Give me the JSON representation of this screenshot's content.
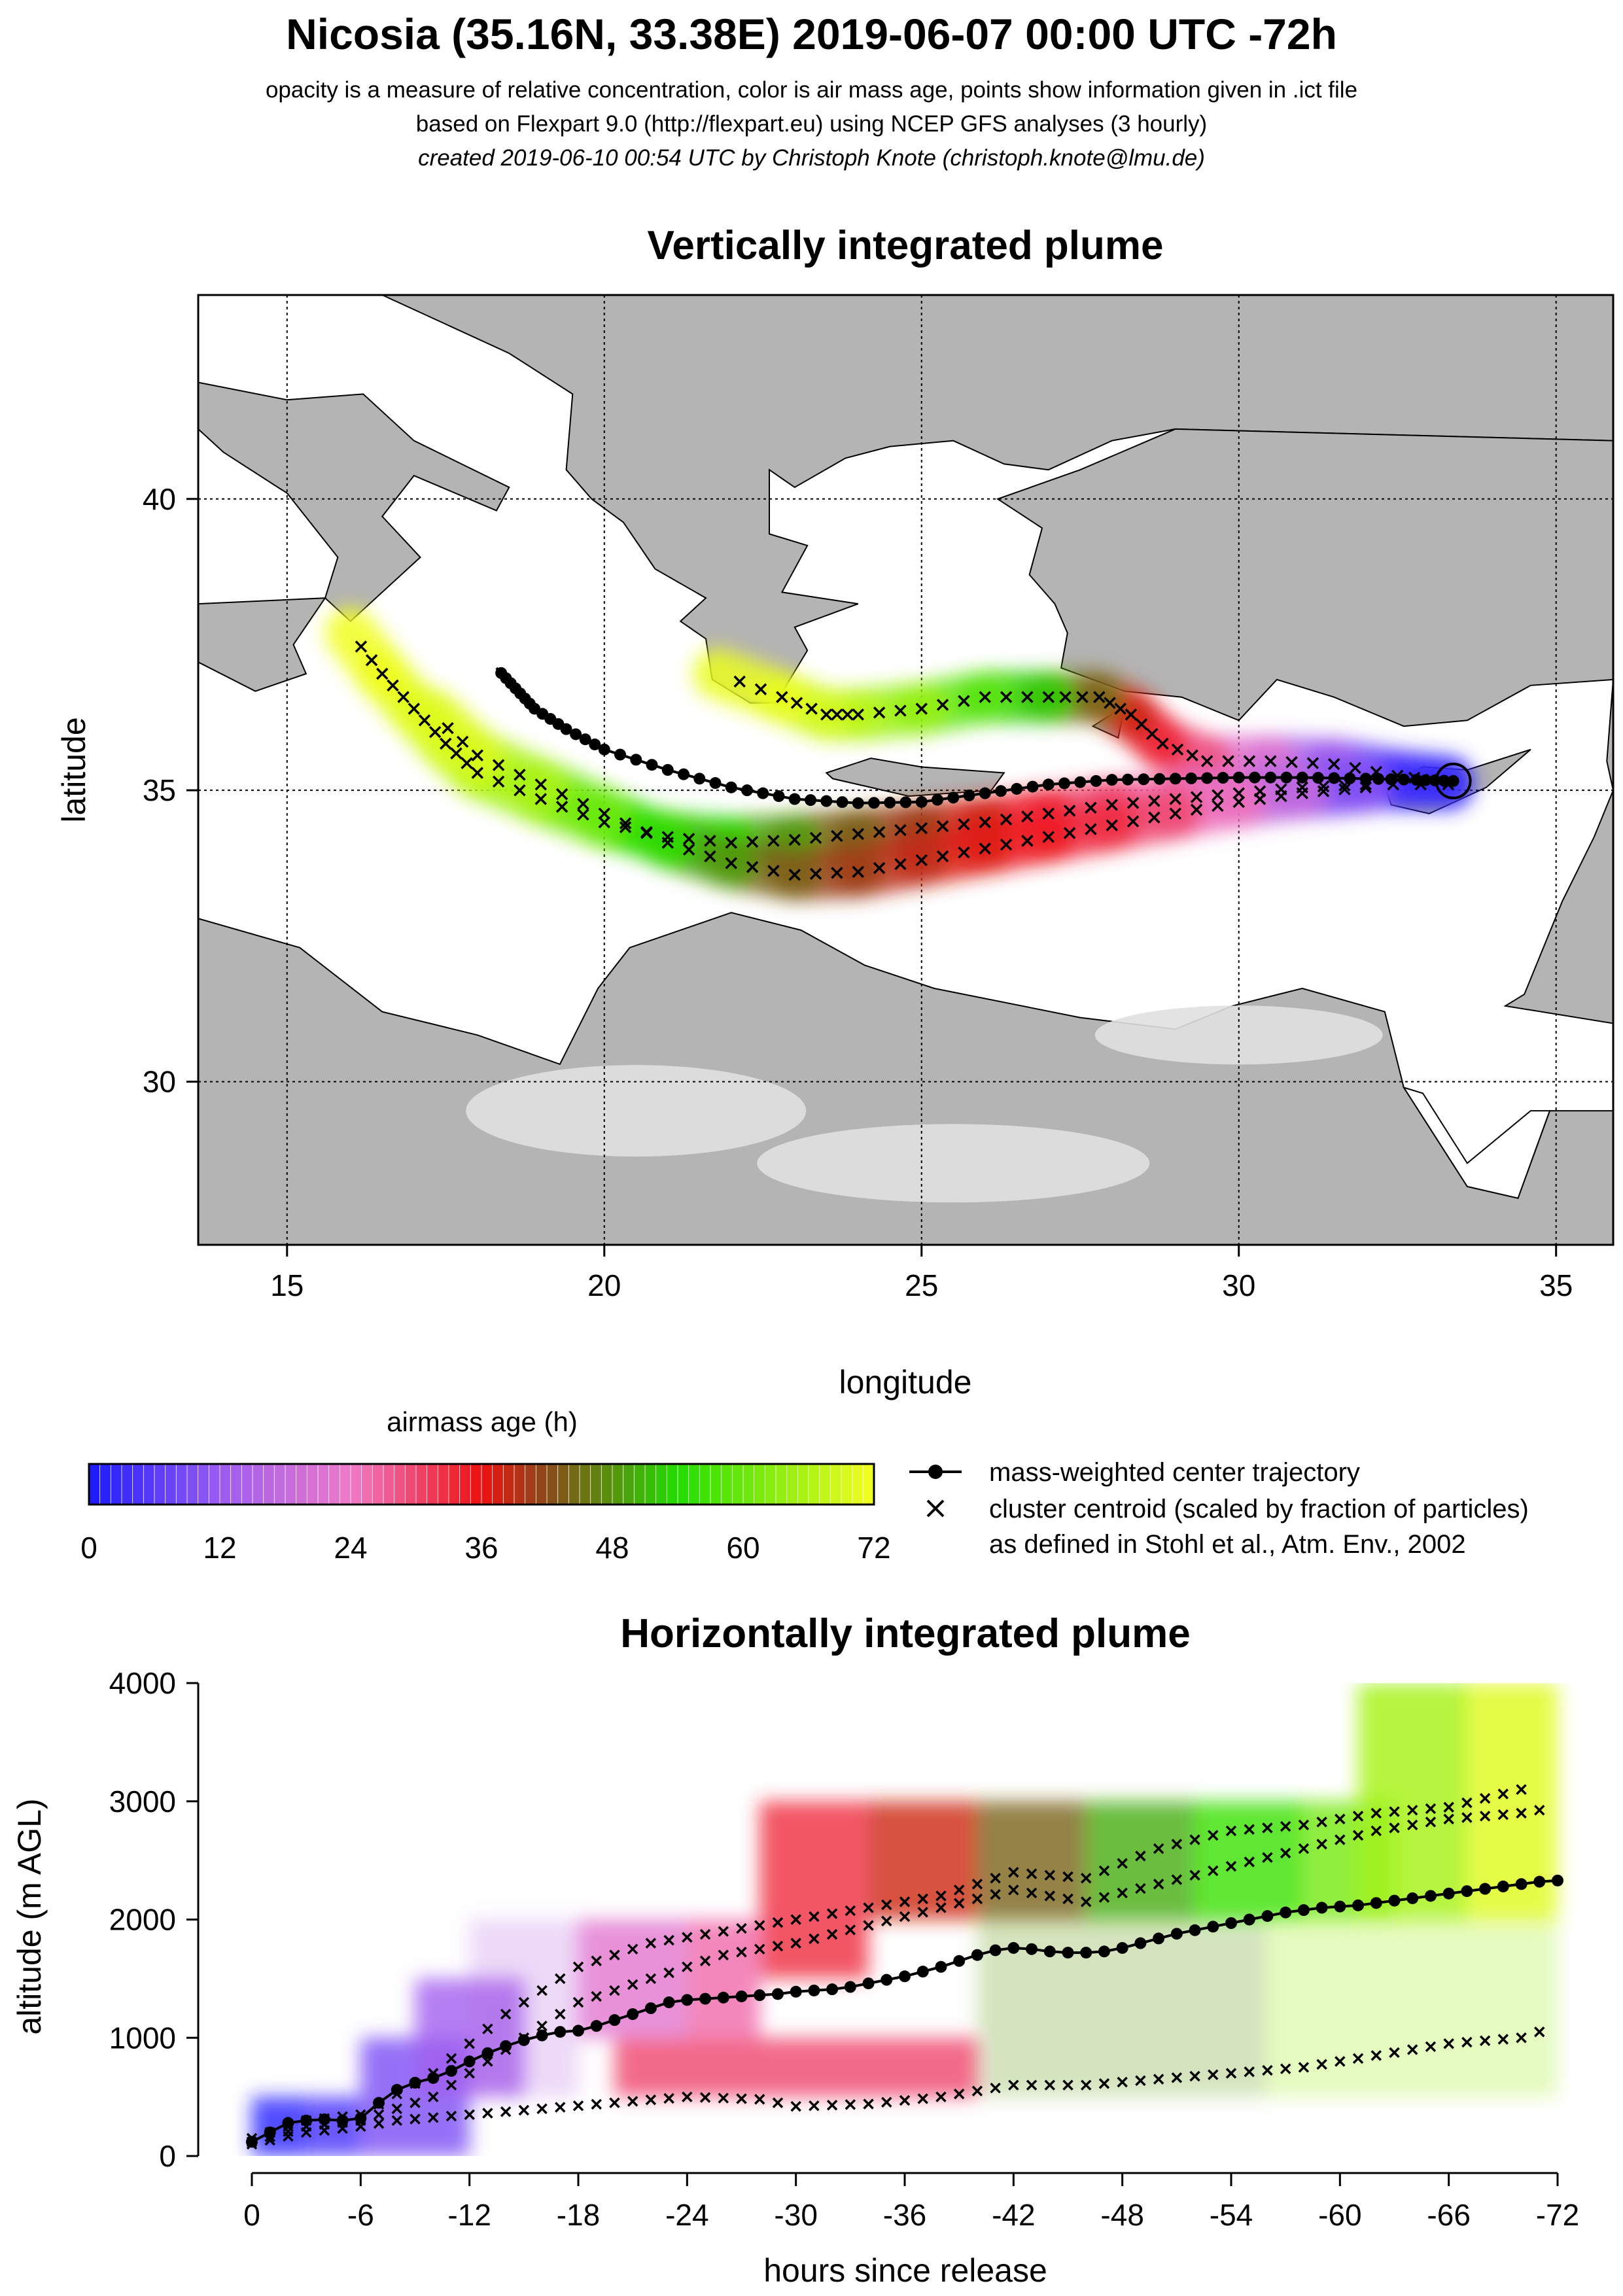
{
  "header": {
    "title": "Nicosia (35.16N, 33.38E) 2019-06-07 00:00 UTC -72h",
    "line1": "opacity is a measure of relative concentration, color is air mass age, points show information given in .ict file",
    "line2": "based on Flexpart 9.0 (http://flexpart.eu) using NCEP GFS analyses (3 hourly)",
    "line3": "created 2019-06-10 00:54 UTC by Christoph Knote (christoph.knote@lmu.de)"
  },
  "colors": {
    "age_0": "#1a1aff",
    "age_12": "#9b5cf2",
    "age_24": "#f07ac8",
    "age_36": "#ee1111",
    "age_42": "#8a4a1a",
    "age_54": "#22dd00",
    "age_72": "#f6ff20",
    "land": "#b4b4b4",
    "sea": "#ffffff"
  },
  "chart_data": [
    {
      "type": "map",
      "title": "Vertically integrated plume",
      "xlabel": "longitude",
      "ylabel": "latitude",
      "xlim": [
        13.6,
        35.9
      ],
      "ylim": [
        27.2,
        43.5
      ],
      "xticks": [
        "15",
        "20",
        "25",
        "30",
        "35"
      ],
      "yticks": [
        "30",
        "35",
        "40"
      ],
      "release_point": {
        "lon": 33.38,
        "lat": 35.16
      },
      "center_trajectory": {
        "lon": [
          33.38,
          32.8,
          32.0,
          31.0,
          30.0,
          29.0,
          28.0,
          27.0,
          26.0,
          25.0,
          24.0,
          23.0,
          22.0,
          21.0,
          20.0,
          19.4,
          18.9,
          18.6,
          18.3
        ],
        "lat": [
          35.16,
          35.18,
          35.2,
          35.22,
          35.22,
          35.2,
          35.18,
          35.1,
          34.95,
          34.8,
          34.78,
          34.85,
          35.05,
          35.35,
          35.7,
          36.05,
          36.4,
          36.75,
          37.1
        ]
      },
      "clusters": [
        {
          "lon": [
            33.3,
            32.5,
            31.5,
            30.5,
            29.5,
            28.8,
            28.3,
            27.8,
            27.0,
            26.0,
            25.0,
            24.0,
            23.5,
            22.8,
            21.8
          ],
          "lat": [
            35.15,
            35.25,
            35.45,
            35.5,
            35.5,
            35.8,
            36.3,
            36.6,
            36.6,
            36.6,
            36.4,
            36.3,
            36.3,
            36.6,
            37.0
          ]
        },
        {
          "lon": [
            33.3,
            32.0,
            31.0,
            30.0,
            29.0,
            28.0,
            27.0,
            26.0,
            25.0,
            24.0,
            23.0,
            22.0,
            21.0,
            20.0,
            19.0,
            18.0,
            17.5,
            17.0,
            16.5,
            16.0
          ],
          "lat": [
            35.1,
            35.1,
            35.05,
            34.95,
            34.85,
            34.75,
            34.6,
            34.45,
            34.35,
            34.25,
            34.15,
            34.1,
            34.2,
            34.45,
            34.85,
            35.3,
            35.8,
            36.4,
            37.0,
            37.7
          ]
        },
        {
          "lon": [
            32.0,
            31.0,
            30.0,
            29.0,
            28.0,
            27.0,
            26.0,
            25.0,
            24.0,
            23.0,
            22.0,
            21.0,
            20.0,
            19.0,
            18.0,
            17.3
          ],
          "lat": [
            35.05,
            34.95,
            34.8,
            34.6,
            34.4,
            34.2,
            34.0,
            33.8,
            33.6,
            33.55,
            33.75,
            34.1,
            34.6,
            35.1,
            35.6,
            36.3
          ]
        }
      ],
      "plumes": [
        {
          "lon": [
            33.3,
            32.5,
            31.5,
            30.5,
            29.5,
            28.8,
            28.3,
            27.8,
            27.0,
            26.0,
            25.0,
            24.0,
            23.5,
            22.8,
            21.8
          ],
          "lat": [
            35.15,
            35.25,
            35.45,
            35.5,
            35.5,
            35.8,
            36.3,
            36.6,
            36.6,
            36.6,
            36.4,
            36.3,
            36.3,
            36.6,
            37.0
          ],
          "age": [
            0,
            4,
            10,
            18,
            26,
            32,
            36,
            40,
            50,
            56,
            62,
            66,
            68,
            70,
            72
          ]
        },
        {
          "lon": [
            33.3,
            32.0,
            31.0,
            30.0,
            29.0,
            28.0,
            27.0,
            26.0,
            25.0,
            24.0,
            23.0,
            22.0,
            21.0,
            20.0,
            19.0,
            18.0,
            17.5,
            17.0,
            16.5,
            16.0
          ],
          "lat": [
            35.1,
            35.1,
            35.05,
            34.95,
            34.85,
            34.75,
            34.6,
            34.45,
            34.35,
            34.25,
            34.15,
            34.1,
            34.2,
            34.45,
            34.85,
            35.3,
            35.8,
            36.4,
            37.0,
            37.7
          ],
          "age": [
            0,
            6,
            12,
            18,
            24,
            28,
            32,
            36,
            40,
            42,
            46,
            52,
            56,
            60,
            64,
            66,
            68,
            70,
            71,
            72
          ]
        },
        {
          "lon": [
            32.0,
            31.0,
            30.0,
            29.0,
            28.0,
            27.0,
            26.0,
            25.0,
            24.0,
            23.0,
            22.0,
            21.0,
            20.0,
            19.0,
            18.0,
            17.3
          ],
          "lat": [
            35.05,
            34.95,
            34.8,
            34.6,
            34.4,
            34.2,
            34.0,
            33.8,
            33.6,
            33.55,
            33.75,
            34.1,
            34.6,
            35.1,
            35.6,
            36.3
          ],
          "age": [
            6,
            14,
            22,
            28,
            32,
            34,
            36,
            38,
            40,
            42,
            46,
            52,
            58,
            64,
            68,
            72
          ]
        }
      ]
    },
    {
      "type": "colorbar",
      "title": "airmass age (h)",
      "range": [
        0,
        72
      ],
      "ticks": [
        "0",
        "12",
        "24",
        "36",
        "48",
        "60",
        "72"
      ]
    },
    {
      "type": "legend",
      "entries": [
        {
          "symbol": "line-dot",
          "label": "mass-weighted center trajectory"
        },
        {
          "symbol": "cross",
          "label": "cluster centroid (scaled by fraction of particles)"
        },
        {
          "symbol": "none",
          "label": "as defined in Stohl et al., Atm. Env., 2002"
        }
      ]
    },
    {
      "type": "heatmap",
      "title": "Horizontally integrated plume",
      "xlabel": "hours since release",
      "ylabel": "altitude (m AGL)",
      "xlim": [
        0,
        -72
      ],
      "ylim": [
        0,
        4000
      ],
      "xticks": [
        "0",
        "-6",
        "-12",
        "-18",
        "-24",
        "-30",
        "-36",
        "-42",
        "-48",
        "-54",
        "-60",
        "-66",
        "-72"
      ],
      "yticks": [
        "0",
        "1000",
        "2000",
        "3000",
        "4000"
      ],
      "center_altitude": {
        "hours": [
          0,
          -1,
          -2,
          -3,
          -4,
          -5,
          -6,
          -7,
          -8,
          -9,
          -10,
          -11,
          -12,
          -13,
          -14,
          -15,
          -16,
          -17,
          -18,
          -19,
          -20,
          -21,
          -22,
          -23,
          -24,
          -25,
          -26,
          -27,
          -28,
          -29,
          -30,
          -31,
          -32,
          -33,
          -34,
          -35,
          -36,
          -37,
          -38,
          -39,
          -40,
          -41,
          -42,
          -43,
          -44,
          -45,
          -46,
          -47,
          -48,
          -49,
          -50,
          -51,
          -52,
          -53,
          -54,
          -55,
          -56,
          -57,
          -58,
          -59,
          -60,
          -61,
          -62,
          -63,
          -64,
          -65,
          -66,
          -67,
          -68,
          -69,
          -70,
          -71,
          -72
        ],
        "altitude": [
          120,
          200,
          280,
          300,
          310,
          300,
          320,
          450,
          560,
          620,
          660,
          720,
          800,
          870,
          930,
          980,
          1020,
          1050,
          1060,
          1100,
          1150,
          1200,
          1250,
          1300,
          1320,
          1330,
          1340,
          1350,
          1360,
          1370,
          1390,
          1400,
          1410,
          1430,
          1460,
          1490,
          1520,
          1560,
          1600,
          1650,
          1700,
          1740,
          1760,
          1750,
          1730,
          1720,
          1720,
          1730,
          1760,
          1800,
          1840,
          1880,
          1910,
          1940,
          1970,
          2000,
          2030,
          2060,
          2080,
          2100,
          2110,
          2120,
          2140,
          2160,
          2180,
          2200,
          2220,
          2240,
          2260,
          2280,
          2300,
          2320,
          2330
        ]
      },
      "clusters": [
        {
          "hours": [
            0,
            -3,
            -6,
            -10,
            -14,
            -18,
            -22,
            -26,
            -30,
            -34,
            -38,
            -42,
            -46,
            -50,
            -54,
            -58,
            -62,
            -66,
            -70,
            -71
          ],
          "altitude": [
            150,
            300,
            350,
            700,
            1200,
            1600,
            1800,
            1900,
            2000,
            2100,
            2200,
            2400,
            2350,
            2600,
            2750,
            2800,
            2900,
            2950,
            3100,
            3150
          ]
        },
        {
          "hours": [
            0,
            -3,
            -6,
            -10,
            -14,
            -18,
            -22,
            -26,
            -30,
            -34,
            -38,
            -42,
            -46,
            -50,
            -54,
            -58,
            -62,
            -66,
            -70,
            -72
          ],
          "altitude": [
            120,
            250,
            300,
            500,
            900,
            1300,
            1500,
            1700,
            1800,
            1950,
            2100,
            2250,
            2150,
            2300,
            2450,
            2600,
            2750,
            2850,
            2900,
            2950
          ]
        },
        {
          "hours": [
            0,
            -3,
            -6,
            -8,
            -12,
            -16,
            -20,
            -24,
            -28,
            -30,
            -34,
            -38,
            -42,
            -46,
            -50,
            -54,
            -58,
            -62,
            -66,
            -70,
            -72
          ],
          "altitude": [
            100,
            200,
            250,
            300,
            350,
            400,
            450,
            500,
            480,
            420,
            440,
            500,
            600,
            600,
            650,
            700,
            750,
            850,
            950,
            1000,
            1100
          ]
        }
      ],
      "bins": [
        {
          "h0": 0,
          "h1": -3,
          "a0": 0,
          "a1": 500,
          "age": 1
        },
        {
          "h0": -3,
          "h1": -6,
          "a0": 0,
          "a1": 500,
          "age": 4
        },
        {
          "h0": -6,
          "h1": -12,
          "a0": 0,
          "a1": 1000,
          "age": 9
        },
        {
          "h0": -9,
          "h1": -15,
          "a0": 500,
          "a1": 1500,
          "age": 13
        },
        {
          "h0": -12,
          "h1": -18,
          "a0": 500,
          "a1": 2000,
          "age": 16
        },
        {
          "h0": -18,
          "h1": -24,
          "a0": 1000,
          "a1": 2000,
          "age": 22
        },
        {
          "h0": -24,
          "h1": -28,
          "a0": 1000,
          "a1": 2000,
          "age": 26
        },
        {
          "h0": -28,
          "h1": -34,
          "a0": 1500,
          "a1": 3000,
          "age": 33
        },
        {
          "h0": -34,
          "h1": -40,
          "a0": 2000,
          "a1": 3000,
          "age": 38
        },
        {
          "h0": -40,
          "h1": -46,
          "a0": 2000,
          "a1": 3000,
          "age": 44
        },
        {
          "h0": -46,
          "h1": -52,
          "a0": 2000,
          "a1": 3000,
          "age": 50
        },
        {
          "h0": -52,
          "h1": -58,
          "a0": 2000,
          "a1": 3000,
          "age": 56
        },
        {
          "h0": -58,
          "h1": -63,
          "a0": 2000,
          "a1": 3000,
          "age": 61
        },
        {
          "h0": -61,
          "h1": -67,
          "a0": 2000,
          "a1": 4000,
          "age": 65
        },
        {
          "h0": -67,
          "h1": -72,
          "a0": 2000,
          "a1": 4000,
          "age": 70
        },
        {
          "h0": -20,
          "h1": -40,
          "a0": 500,
          "a1": 1000,
          "age": 30
        },
        {
          "h0": -40,
          "h1": -56,
          "a0": 500,
          "a1": 2000,
          "age": 48
        },
        {
          "h0": -56,
          "h1": -72,
          "a0": 500,
          "a1": 2000,
          "age": 64
        }
      ]
    }
  ]
}
